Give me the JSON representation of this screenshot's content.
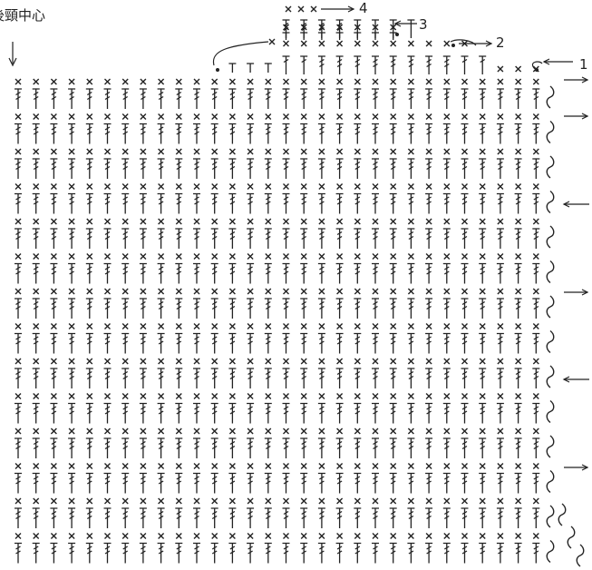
{
  "labels": {
    "center": "後頸中心",
    "row_1": "1",
    "row_2": "2",
    "row_3": "3",
    "row_4": "4"
  }
}
